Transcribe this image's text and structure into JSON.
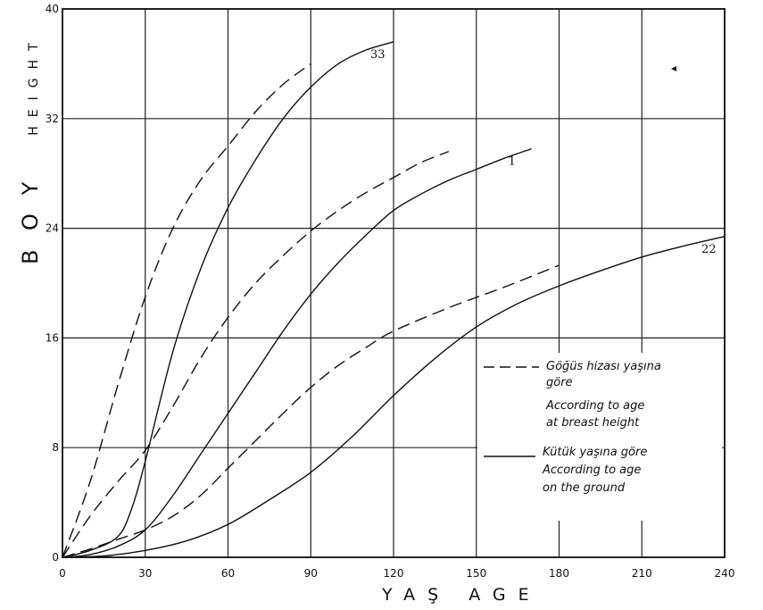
{
  "chart_data": {
    "type": "line",
    "xlabel": "YAŞ      AGE",
    "ylabel": "BOY  HEIGHT",
    "xlim": [
      0,
      240
    ],
    "ylim": [
      0,
      40
    ],
    "x_ticks": [
      "0",
      "30",
      "60",
      "90",
      "120",
      "150",
      "180",
      "210",
      "240"
    ],
    "y_ticks": [
      "0",
      "8",
      "16",
      "24",
      "32",
      "40"
    ],
    "grid": true,
    "legend": {
      "position": "center-right",
      "entries": [
        {
          "style": "dashed",
          "text": [
            "Göğüs hizası yaşına",
            "göre",
            "According to age",
            "at breast height"
          ]
        },
        {
          "style": "solid",
          "text": [
            "Kütük yaşına göre",
            "According to age",
            "on the ground"
          ]
        }
      ]
    },
    "series": [
      {
        "name": "33",
        "style": "dashed",
        "x": [
          0,
          10,
          20,
          30,
          40,
          50,
          60,
          70,
          80,
          90
        ],
        "y": [
          0,
          5.5,
          12.5,
          19,
          24,
          27.5,
          30,
          32.5,
          34.5,
          36
        ]
      },
      {
        "name": "33",
        "style": "solid",
        "x": [
          0,
          10,
          20,
          25,
          30,
          40,
          50,
          60,
          70,
          80,
          90,
          100,
          110,
          120
        ],
        "y": [
          0,
          0.5,
          1.5,
          3.5,
          7,
          15,
          21,
          25.5,
          29,
          32,
          34.3,
          36,
          37,
          37.6
        ]
      },
      {
        "name": "1",
        "style": "dashed",
        "x": [
          0,
          10,
          20,
          30,
          40,
          50,
          60,
          70,
          80,
          90,
          100,
          110,
          120,
          130,
          140
        ],
        "y": [
          0,
          3,
          5.5,
          7.8,
          11,
          14.5,
          17.5,
          20,
          22,
          23.8,
          25.3,
          26.6,
          27.7,
          28.8,
          29.6
        ]
      },
      {
        "name": "1",
        "style": "solid",
        "x": [
          0,
          10,
          20,
          30,
          40,
          50,
          60,
          70,
          80,
          90,
          100,
          110,
          120,
          130,
          140,
          150,
          160,
          170
        ],
        "y": [
          0,
          0.2,
          0.8,
          2,
          4.5,
          7.5,
          10.5,
          13.5,
          16.5,
          19.2,
          21.5,
          23.5,
          25.3,
          26.5,
          27.5,
          28.3,
          29.1,
          29.8
        ]
      },
      {
        "name": "22",
        "style": "dashed",
        "x": [
          0,
          10,
          20,
          30,
          40,
          50,
          60,
          70,
          80,
          90,
          100,
          110,
          120,
          140,
          160,
          180
        ],
        "y": [
          0,
          0.6,
          1.3,
          2,
          3,
          4.5,
          6.5,
          8.5,
          10.5,
          12.4,
          14,
          15.3,
          16.5,
          18.2,
          19.7,
          21.3
        ]
      },
      {
        "name": "22",
        "style": "solid",
        "x": [
          0,
          15,
          30,
          45,
          60,
          75,
          90,
          105,
          120,
          135,
          150,
          165,
          180,
          195,
          210,
          225,
          240
        ],
        "y": [
          0,
          0.1,
          0.5,
          1.2,
          2.4,
          4.2,
          6.2,
          8.8,
          11.8,
          14.5,
          16.8,
          18.5,
          19.8,
          20.9,
          21.9,
          22.7,
          23.4
        ]
      }
    ]
  }
}
